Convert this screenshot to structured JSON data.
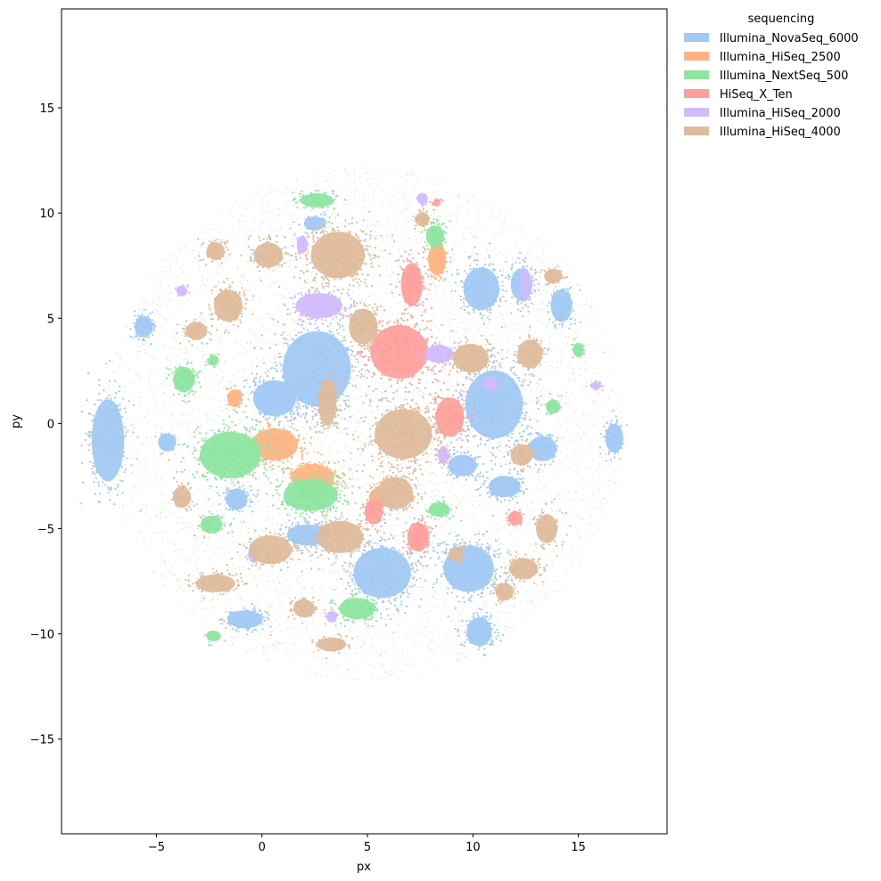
{
  "chart_data": {
    "type": "scatter",
    "xlabel": "px",
    "ylabel": "py",
    "xlim": [
      -9.5,
      19.2
    ],
    "ylim": [
      -19.5,
      19.7
    ],
    "xticks": [
      -5,
      0,
      5,
      10,
      15
    ],
    "yticks": [
      -15,
      -10,
      -5,
      0,
      5,
      10,
      15
    ],
    "xtick_labels": [
      "−5",
      "0",
      "5",
      "10",
      "15"
    ],
    "ytick_labels": [
      "−15",
      "−10",
      "−5",
      "0",
      "5",
      "10",
      "15"
    ],
    "grid": false,
    "legend": {
      "title": "sequencing",
      "placement": "outside-top-right"
    },
    "series": [
      {
        "name": "Illumina_NovaSeq_6000",
        "color": "#a1c9f4",
        "clusters": [
          {
            "cx": 2.6,
            "cy": 2.6,
            "rx": 1.9,
            "ry": 2.1,
            "w": 1.2
          },
          {
            "cx": 0.6,
            "cy": 1.2,
            "rx": 1.2,
            "ry": 1.0,
            "w": 0.6
          },
          {
            "cx": 11.0,
            "cy": 0.9,
            "rx": 1.6,
            "ry": 1.9,
            "w": 1.1
          },
          {
            "cx": -7.3,
            "cy": -0.8,
            "rx": 0.9,
            "ry": 2.3,
            "w": 0.7
          },
          {
            "cx": 5.7,
            "cy": -7.1,
            "rx": 1.6,
            "ry": 1.4,
            "w": 0.9
          },
          {
            "cx": 9.8,
            "cy": -6.9,
            "rx": 1.4,
            "ry": 1.3,
            "w": 0.9
          },
          {
            "cx": 10.3,
            "cy": -9.9,
            "rx": 0.7,
            "ry": 0.8,
            "w": 0.4
          },
          {
            "cx": 10.4,
            "cy": 6.4,
            "rx": 1.0,
            "ry": 1.2,
            "w": 0.5
          },
          {
            "cx": 12.3,
            "cy": 6.6,
            "rx": 0.6,
            "ry": 0.9,
            "w": 0.3
          },
          {
            "cx": 16.7,
            "cy": -0.7,
            "rx": 0.5,
            "ry": 0.8,
            "w": 0.2
          },
          {
            "cx": -5.6,
            "cy": 4.6,
            "rx": 0.5,
            "ry": 0.6,
            "w": 0.2
          },
          {
            "cx": -0.8,
            "cy": -9.3,
            "rx": 1.0,
            "ry": 0.5,
            "w": 0.3
          },
          {
            "cx": 14.2,
            "cy": 5.6,
            "rx": 0.6,
            "ry": 0.9,
            "w": 0.25
          },
          {
            "cx": 9.5,
            "cy": -2.0,
            "rx": 0.8,
            "ry": 0.6,
            "w": 0.25
          },
          {
            "cx": 11.5,
            "cy": -3.0,
            "rx": 0.9,
            "ry": 0.6,
            "w": 0.3
          },
          {
            "cx": 2.2,
            "cy": -5.3,
            "rx": 1.2,
            "ry": 0.6,
            "w": 0.35
          },
          {
            "cx": -1.2,
            "cy": -3.6,
            "rx": 0.6,
            "ry": 0.6,
            "w": 0.2
          },
          {
            "cx": -4.5,
            "cy": -0.9,
            "rx": 0.5,
            "ry": 0.5,
            "w": 0.12
          },
          {
            "cx": 2.5,
            "cy": 9.5,
            "rx": 0.6,
            "ry": 0.4,
            "w": 0.12
          },
          {
            "cx": 13.3,
            "cy": -1.2,
            "rx": 0.8,
            "ry": 0.7,
            "w": 0.25
          }
        ]
      },
      {
        "name": "Illumina_HiSeq_2500",
        "color": "#ffb482",
        "clusters": [
          {
            "cx": 0.6,
            "cy": -1.0,
            "rx": 1.3,
            "ry": 0.9,
            "w": 0.5
          },
          {
            "cx": 2.4,
            "cy": -2.6,
            "rx": 1.2,
            "ry": 0.8,
            "w": 0.5
          },
          {
            "cx": 8.3,
            "cy": 7.8,
            "rx": 0.5,
            "ry": 0.9,
            "w": 0.25
          },
          {
            "cx": -1.3,
            "cy": 1.2,
            "rx": 0.4,
            "ry": 0.5,
            "w": 0.1
          },
          {
            "cx": 5.5,
            "cy": -3.5,
            "rx": 0.5,
            "ry": 0.5,
            "w": 0.1
          }
        ]
      },
      {
        "name": "Illumina_NextSeq_500",
        "color": "#8de5a1",
        "clusters": [
          {
            "cx": -1.5,
            "cy": -1.5,
            "rx": 1.7,
            "ry": 1.3,
            "w": 1.0
          },
          {
            "cx": 2.3,
            "cy": -3.4,
            "rx": 1.5,
            "ry": 0.9,
            "w": 0.8
          },
          {
            "cx": -3.7,
            "cy": 2.1,
            "rx": 0.6,
            "ry": 0.7,
            "w": 0.3
          },
          {
            "cx": 4.5,
            "cy": -8.8,
            "rx": 1.0,
            "ry": 0.6,
            "w": 0.35
          },
          {
            "cx": 8.2,
            "cy": 8.9,
            "rx": 0.5,
            "ry": 0.6,
            "w": 0.2
          },
          {
            "cx": 8.4,
            "cy": -4.1,
            "rx": 0.6,
            "ry": 0.4,
            "w": 0.15
          },
          {
            "cx": 2.6,
            "cy": 10.6,
            "rx": 0.9,
            "ry": 0.4,
            "w": 0.2
          },
          {
            "cx": -2.4,
            "cy": -4.8,
            "rx": 0.6,
            "ry": 0.5,
            "w": 0.15
          },
          {
            "cx": 15.0,
            "cy": 3.5,
            "rx": 0.3,
            "ry": 0.4,
            "w": 0.07
          },
          {
            "cx": -2.3,
            "cy": -10.1,
            "rx": 0.4,
            "ry": 0.3,
            "w": 0.06
          },
          {
            "cx": -2.3,
            "cy": 3.0,
            "rx": 0.3,
            "ry": 0.3,
            "w": 0.05
          },
          {
            "cx": 13.8,
            "cy": 0.8,
            "rx": 0.4,
            "ry": 0.4,
            "w": 0.06
          }
        ]
      },
      {
        "name": "HiSeq_X_Ten",
        "color": "#ff9f9b",
        "clusters": [
          {
            "cx": 6.5,
            "cy": 3.4,
            "rx": 1.6,
            "ry": 1.5,
            "w": 1.0
          },
          {
            "cx": 7.1,
            "cy": 6.6,
            "rx": 0.6,
            "ry": 1.2,
            "w": 0.35
          },
          {
            "cx": 8.9,
            "cy": 0.3,
            "rx": 0.8,
            "ry": 1.1,
            "w": 0.4
          },
          {
            "cx": 7.4,
            "cy": -5.4,
            "rx": 0.6,
            "ry": 0.8,
            "w": 0.3
          },
          {
            "cx": 5.3,
            "cy": -4.2,
            "rx": 0.5,
            "ry": 0.7,
            "w": 0.2
          },
          {
            "cx": 8.3,
            "cy": 10.5,
            "rx": 0.2,
            "ry": 0.2,
            "w": 0.03
          },
          {
            "cx": 12.0,
            "cy": -4.5,
            "rx": 0.4,
            "ry": 0.4,
            "w": 0.05
          }
        ]
      },
      {
        "name": "Illumina_HiSeq_2000",
        "color": "#d0bbff",
        "clusters": [
          {
            "cx": 2.7,
            "cy": 5.6,
            "rx": 1.3,
            "ry": 0.7,
            "w": 0.55
          },
          {
            "cx": 8.4,
            "cy": 3.3,
            "rx": 0.8,
            "ry": 0.5,
            "w": 0.2
          },
          {
            "cx": 12.5,
            "cy": 6.6,
            "rx": 0.3,
            "ry": 0.9,
            "w": 0.15
          },
          {
            "cx": 1.9,
            "cy": 8.5,
            "rx": 0.3,
            "ry": 0.5,
            "w": 0.08
          },
          {
            "cx": -0.4,
            "cy": -6.2,
            "rx": 0.3,
            "ry": 0.5,
            "w": 0.08
          },
          {
            "cx": 10.8,
            "cy": 1.9,
            "rx": 0.4,
            "ry": 0.4,
            "w": 0.06
          },
          {
            "cx": 3.3,
            "cy": -9.2,
            "rx": 0.3,
            "ry": 0.3,
            "w": 0.05
          },
          {
            "cx": 7.6,
            "cy": 10.7,
            "rx": 0.3,
            "ry": 0.3,
            "w": 0.04
          },
          {
            "cx": 15.8,
            "cy": 1.8,
            "rx": 0.3,
            "ry": 0.2,
            "w": 0.04
          },
          {
            "cx": -3.8,
            "cy": 6.3,
            "rx": 0.3,
            "ry": 0.3,
            "w": 0.04
          },
          {
            "cx": 8.6,
            "cy": -1.5,
            "rx": 0.3,
            "ry": 0.5,
            "w": 0.05
          }
        ]
      },
      {
        "name": "Illumina_HiSeq_4000",
        "color": "#debb9b",
        "clusters": [
          {
            "cx": 3.6,
            "cy": 8.0,
            "rx": 1.5,
            "ry": 1.3,
            "w": 1.0
          },
          {
            "cx": 6.7,
            "cy": -0.5,
            "rx": 1.6,
            "ry": 1.4,
            "w": 1.0
          },
          {
            "cx": 6.3,
            "cy": -3.3,
            "rx": 1.0,
            "ry": 0.9,
            "w": 0.5
          },
          {
            "cx": 4.8,
            "cy": 4.6,
            "rx": 0.8,
            "ry": 1.0,
            "w": 0.4
          },
          {
            "cx": 3.1,
            "cy": 1.0,
            "rx": 0.5,
            "ry": 1.3,
            "w": 0.35
          },
          {
            "cx": 9.9,
            "cy": 3.1,
            "rx": 1.0,
            "ry": 0.8,
            "w": 0.45
          },
          {
            "cx": 3.7,
            "cy": -5.4,
            "rx": 1.3,
            "ry": 0.9,
            "w": 0.5
          },
          {
            "cx": 0.4,
            "cy": -6.0,
            "rx": 1.2,
            "ry": 0.8,
            "w": 0.4
          },
          {
            "cx": -1.6,
            "cy": 5.6,
            "rx": 0.8,
            "ry": 0.9,
            "w": 0.35
          },
          {
            "cx": 0.3,
            "cy": 8.0,
            "rx": 0.8,
            "ry": 0.7,
            "w": 0.3
          },
          {
            "cx": 13.5,
            "cy": -5.0,
            "rx": 0.6,
            "ry": 0.8,
            "w": 0.25
          },
          {
            "cx": 12.4,
            "cy": -6.9,
            "rx": 0.8,
            "ry": 0.6,
            "w": 0.25
          },
          {
            "cx": 11.5,
            "cy": -8.0,
            "rx": 0.5,
            "ry": 0.5,
            "w": 0.15
          },
          {
            "cx": 2.0,
            "cy": -8.8,
            "rx": 0.6,
            "ry": 0.5,
            "w": 0.2
          },
          {
            "cx": -3.8,
            "cy": -3.5,
            "rx": 0.5,
            "ry": 0.6,
            "w": 0.15
          },
          {
            "cx": -2.2,
            "cy": 8.2,
            "rx": 0.5,
            "ry": 0.5,
            "w": 0.15
          },
          {
            "cx": 12.7,
            "cy": 3.3,
            "rx": 0.7,
            "ry": 0.8,
            "w": 0.25
          },
          {
            "cx": -2.2,
            "cy": -7.6,
            "rx": 1.1,
            "ry": 0.5,
            "w": 0.3
          },
          {
            "cx": 3.3,
            "cy": -10.5,
            "rx": 0.8,
            "ry": 0.4,
            "w": 0.15
          },
          {
            "cx": 12.3,
            "cy": -1.5,
            "rx": 0.6,
            "ry": 0.6,
            "w": 0.2
          },
          {
            "cx": -3.1,
            "cy": 4.4,
            "rx": 0.6,
            "ry": 0.5,
            "w": 0.15
          },
          {
            "cx": 9.2,
            "cy": -6.2,
            "rx": 0.4,
            "ry": 0.4,
            "w": 0.1
          },
          {
            "cx": 7.6,
            "cy": 9.7,
            "rx": 0.4,
            "ry": 0.4,
            "w": 0.1
          },
          {
            "cx": 13.8,
            "cy": 7.0,
            "rx": 0.5,
            "ry": 0.4,
            "w": 0.1
          }
        ]
      }
    ]
  }
}
